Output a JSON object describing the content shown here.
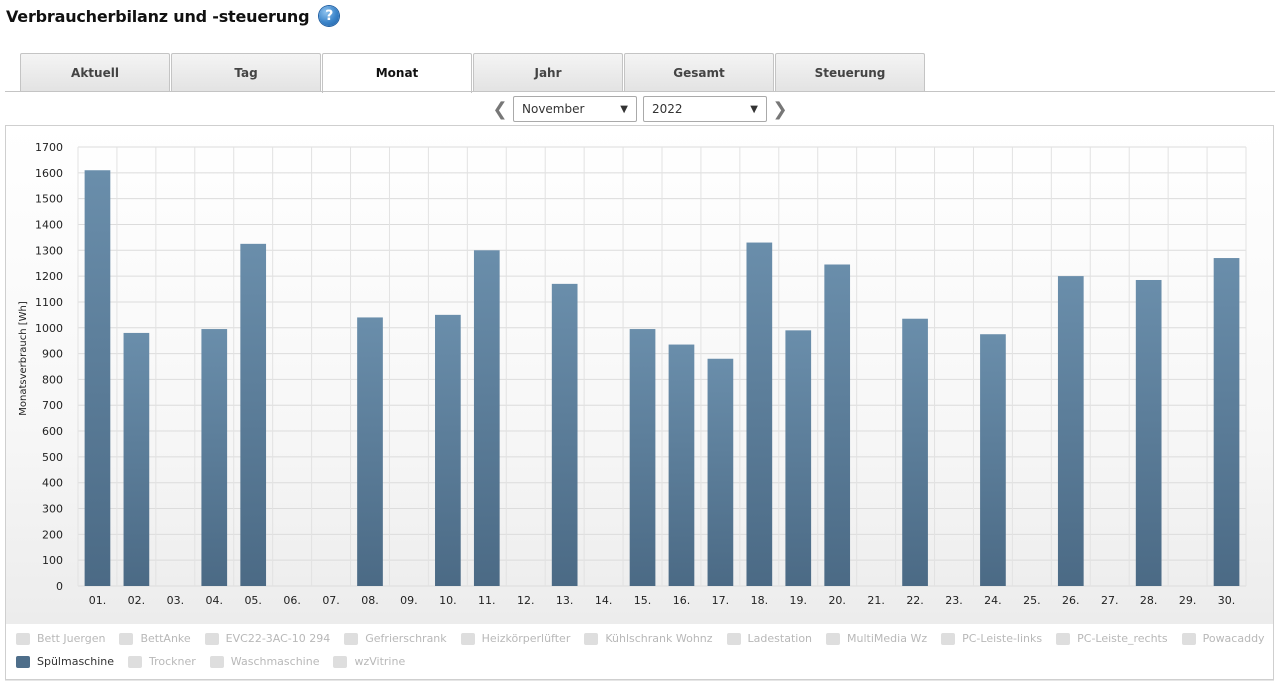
{
  "header": {
    "title": "Verbraucherbilanz und -steuerung",
    "help_icon": "question-circle-icon"
  },
  "tabs": [
    {
      "label": "Aktuell",
      "active": false
    },
    {
      "label": "Tag",
      "active": false
    },
    {
      "label": "Monat",
      "active": true
    },
    {
      "label": "Jahr",
      "active": false
    },
    {
      "label": "Gesamt",
      "active": false
    },
    {
      "label": "Steuerung",
      "active": false
    }
  ],
  "selectors": {
    "month": "November",
    "year": "2022"
  },
  "chart_data": {
    "type": "bar",
    "ylabel": "Monatsverbrauch [Wh]",
    "ylim": [
      0,
      1700
    ],
    "yticks": [
      0,
      100,
      200,
      300,
      400,
      500,
      600,
      700,
      800,
      900,
      1000,
      1100,
      1200,
      1300,
      1400,
      1500,
      1600,
      1700
    ],
    "grid": true,
    "categories": [
      "01.",
      "02.",
      "03.",
      "04.",
      "05.",
      "06.",
      "07.",
      "08.",
      "09.",
      "10.",
      "11.",
      "12.",
      "13.",
      "14.",
      "15.",
      "16.",
      "17.",
      "18.",
      "19.",
      "20.",
      "21.",
      "22.",
      "23.",
      "24.",
      "25.",
      "26.",
      "27.",
      "28.",
      "29.",
      "30."
    ],
    "series": [
      {
        "name": "Spülmaschine",
        "color": "#5b7d99",
        "values": [
          1610,
          980,
          0,
          995,
          1325,
          0,
          0,
          1040,
          0,
          1050,
          1300,
          0,
          1170,
          0,
          995,
          935,
          880,
          1330,
          990,
          1245,
          0,
          1035,
          0,
          975,
          0,
          1200,
          0,
          1185,
          0,
          1270
        ]
      }
    ]
  },
  "legend": [
    [
      {
        "label": "Bett Juergen",
        "active": false
      },
      {
        "label": "BettAnke",
        "active": false
      },
      {
        "label": "EVC22-3AC-10 294",
        "active": false
      },
      {
        "label": "Gefrierschrank",
        "active": false
      },
      {
        "label": "Heizkörperlüfter",
        "active": false
      },
      {
        "label": "Kühlschrank Wohnz",
        "active": false
      },
      {
        "label": "Ladestation",
        "active": false
      },
      {
        "label": "MultiMedia Wz",
        "active": false
      },
      {
        "label": "PC-Leiste-links",
        "active": false
      },
      {
        "label": "PC-Leiste_rechts",
        "active": false
      },
      {
        "label": "Powacaddy",
        "active": false
      }
    ],
    [
      {
        "label": "Spülmaschine",
        "active": true
      },
      {
        "label": "Trockner",
        "active": false
      },
      {
        "label": "Waschmaschine",
        "active": false
      },
      {
        "label": "wzVitrine",
        "active": false
      }
    ]
  ]
}
